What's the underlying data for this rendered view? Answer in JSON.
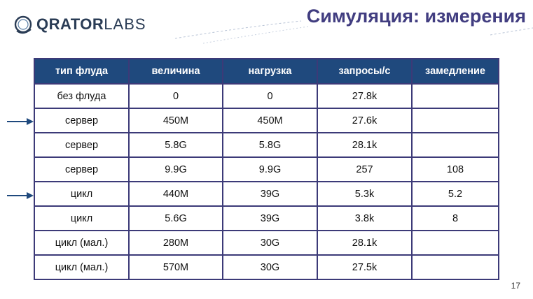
{
  "brand": {
    "logo_bold": "QRATOR",
    "logo_light": "LABS"
  },
  "slide": {
    "title": "Симуляция: измерения",
    "page_number": "17"
  },
  "table": {
    "headers": [
      "тип флуда",
      "величина",
      "нагрузка",
      "запросы/с",
      "замедление"
    ],
    "rows": [
      [
        "без флуда",
        "0",
        "0",
        "27.8k",
        ""
      ],
      [
        "сервер",
        "450M",
        "450M",
        "27.6k",
        ""
      ],
      [
        "сервер",
        "5.8G",
        "5.8G",
        "28.1k",
        ""
      ],
      [
        "сервер",
        "9.9G",
        "9.9G",
        "257",
        "108"
      ],
      [
        "цикл",
        "440M",
        "39G",
        "5.3k",
        "5.2"
      ],
      [
        "цикл",
        "5.6G",
        "39G",
        "3.8k",
        "8"
      ],
      [
        "цикл (мал.)",
        "280M",
        "30G",
        "28.1k",
        ""
      ],
      [
        "цикл (мал.)",
        "570M",
        "30G",
        "27.5k",
        ""
      ]
    ]
  },
  "colors": {
    "header_bg": "#1f497d",
    "title": "#413d80",
    "border": "#3c3a78",
    "arrow": "#1f497d"
  },
  "icons": {
    "arrow": "right-arrow-icon"
  }
}
